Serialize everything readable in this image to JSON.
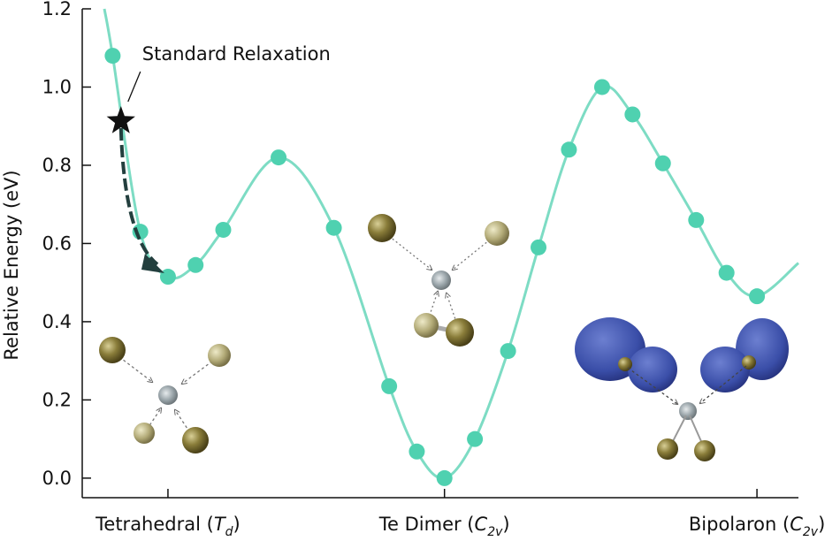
{
  "chart_data": {
    "type": "scatter",
    "ylabel": "Relative Energy (eV)",
    "annotation": "Standard Relaxation",
    "color": "#4fd1b0",
    "curve_color": "#7ddcc4",
    "x": [
      -0.2,
      -0.1,
      0,
      0.1,
      0.2,
      0.4,
      0.6,
      0.8,
      0.9,
      1.0,
      1.11,
      1.23,
      1.34,
      1.45,
      1.57,
      1.68,
      1.79,
      1.91,
      2.02,
      2.13
    ],
    "values": [
      1.08,
      0.63,
      0.515,
      0.545,
      0.635,
      0.82,
      0.64,
      0.235,
      0.068,
      0.0,
      0.1,
      0.325,
      0.59,
      0.84,
      1.0,
      0.93,
      0.805,
      0.66,
      0.525,
      0.465
    ],
    "curve": {
      "x": [
        -0.23,
        -0.2,
        -0.1,
        0,
        0.1,
        0.2,
        0.4,
        0.6,
        0.8,
        0.9,
        1.0,
        1.11,
        1.23,
        1.34,
        1.45,
        1.57,
        1.68,
        1.79,
        1.91,
        2.02,
        2.13,
        2.28
      ],
      "y": [
        1.2,
        1.08,
        0.63,
        0.515,
        0.545,
        0.635,
        0.82,
        0.64,
        0.235,
        0.068,
        0.0,
        0.1,
        0.325,
        0.59,
        0.84,
        1.0,
        0.93,
        0.805,
        0.66,
        0.525,
        0.465,
        0.55
      ]
    },
    "star": {
      "x": -0.17,
      "y": 0.913
    },
    "xlim": [
      -0.31,
      2.28
    ],
    "ylim": [
      -0.05,
      1.2
    ],
    "yticks": [
      {
        "value": 0,
        "label": "0.0"
      },
      0.2,
      0.4,
      0.6,
      0.8,
      {
        "value": 1,
        "label": "1.0"
      },
      1.2
    ],
    "xticks": [
      {
        "value": 0,
        "prefix": "Tetrahedral (",
        "symbol": "T",
        "subscript": "d",
        "suffix": ")"
      },
      {
        "value": 1,
        "prefix": "Te Dimer (",
        "symbol": "C",
        "subscript": "2v",
        "suffix": ")"
      },
      {
        "value": 2.13,
        "prefix": "Bipolaron (",
        "symbol": "C",
        "subscript": "2v",
        "suffix": ")"
      }
    ]
  }
}
